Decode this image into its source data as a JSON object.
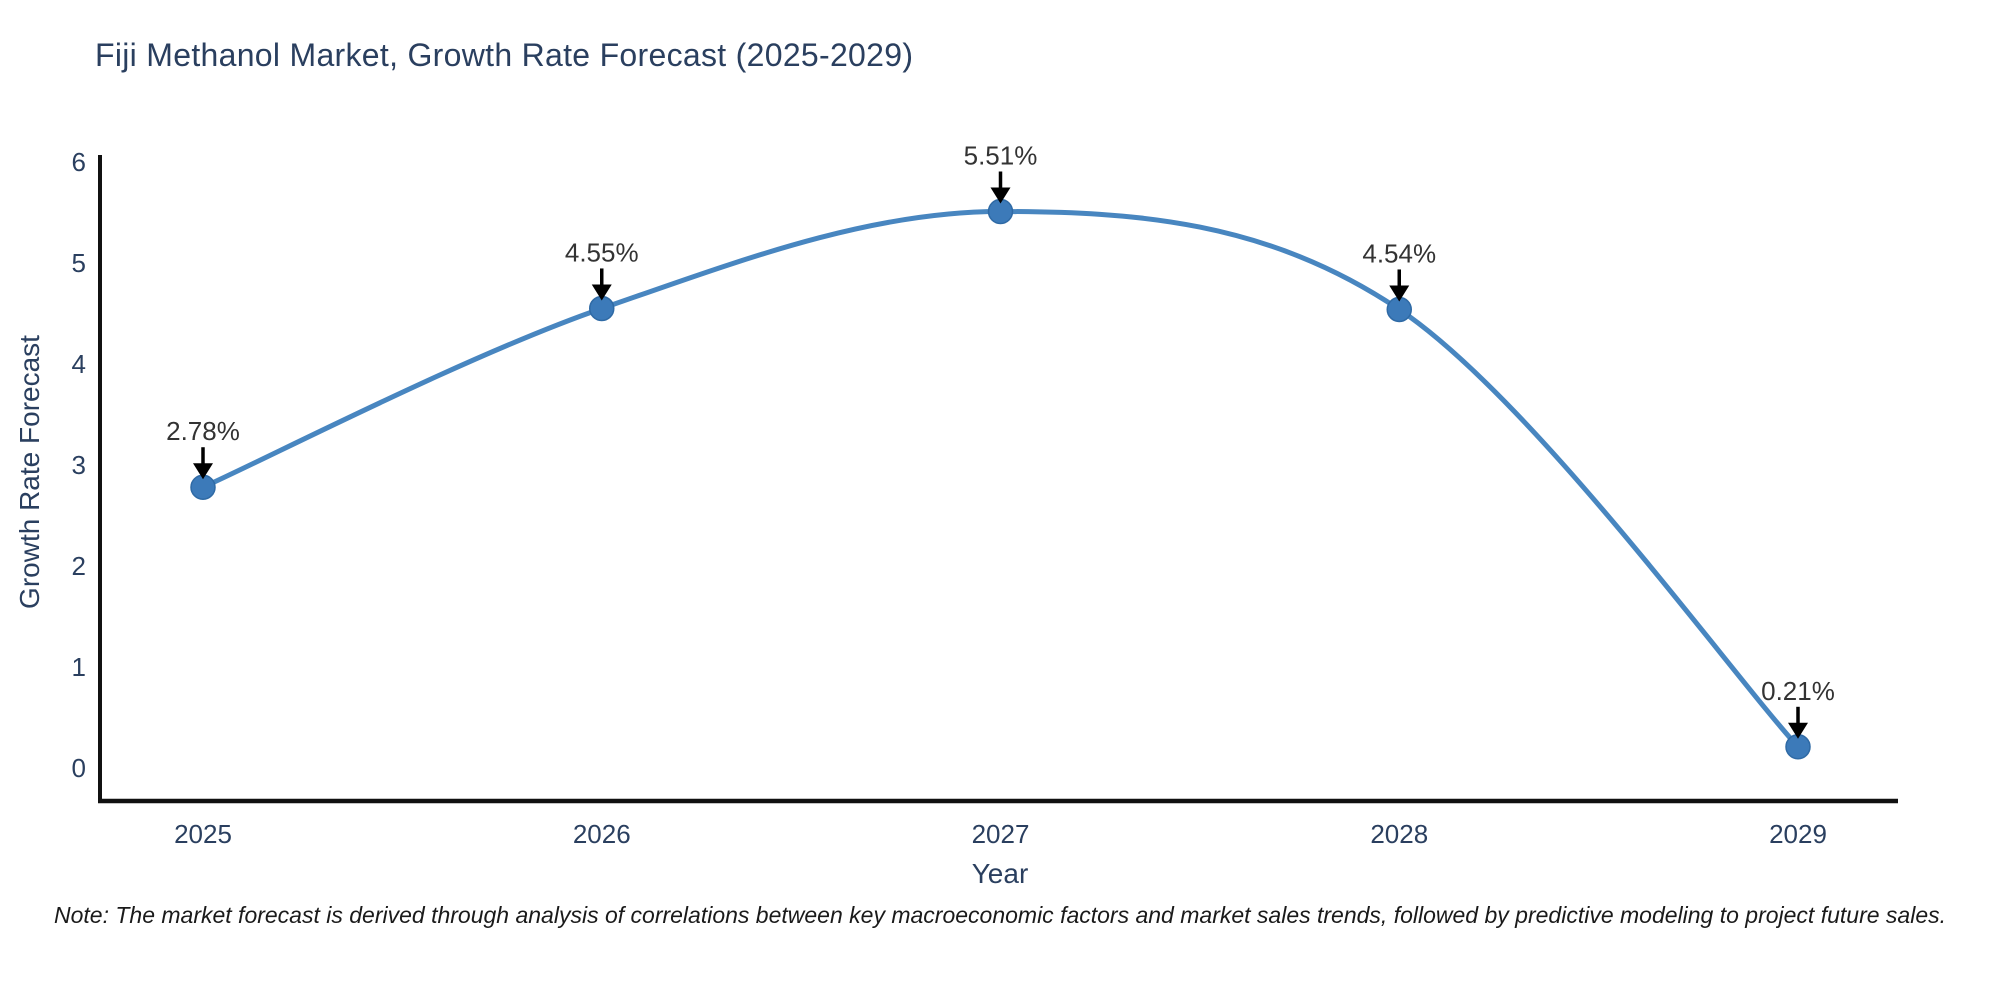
{
  "title": "Fiji Methanol Market, Growth Rate Forecast (2025-2029)",
  "note": "Note: The market forecast is derived through analysis of correlations between key macroeconomic factors and market sales trends, followed by predictive modeling to project future sales.",
  "colors": {
    "background": "#ffffff",
    "title_text": "#2a3f5f",
    "tick_text": "#2a3f5f",
    "line": "#4886c0",
    "marker": "#3c7ab9",
    "marker_edge": "#2f6aa5",
    "axis_line": "#111111",
    "annotation_text": "#333333",
    "arrow": "#000000"
  },
  "chart_data": {
    "type": "line",
    "line_shape": "spline",
    "marker": "circle",
    "title": "Fiji Methanol Market, Growth Rate Forecast (2025-2029)",
    "xlabel": "Year",
    "ylabel": "Growth Rate Forecast",
    "x": [
      2025,
      2026,
      2027,
      2028,
      2029
    ],
    "values": [
      2.78,
      4.55,
      5.51,
      4.54,
      0.21
    ],
    "point_labels": [
      "2.78%",
      "4.55%",
      "5.51%",
      "4.54%",
      "0.21%"
    ],
    "xticks": [
      "2025",
      "2026",
      "2027",
      "2028",
      "2029"
    ],
    "yticks": [
      0,
      1,
      2,
      3,
      4,
      5,
      6
    ],
    "ylim": [
      0,
      6
    ],
    "grid": false,
    "legend": false,
    "annotations_have_arrows": true
  }
}
